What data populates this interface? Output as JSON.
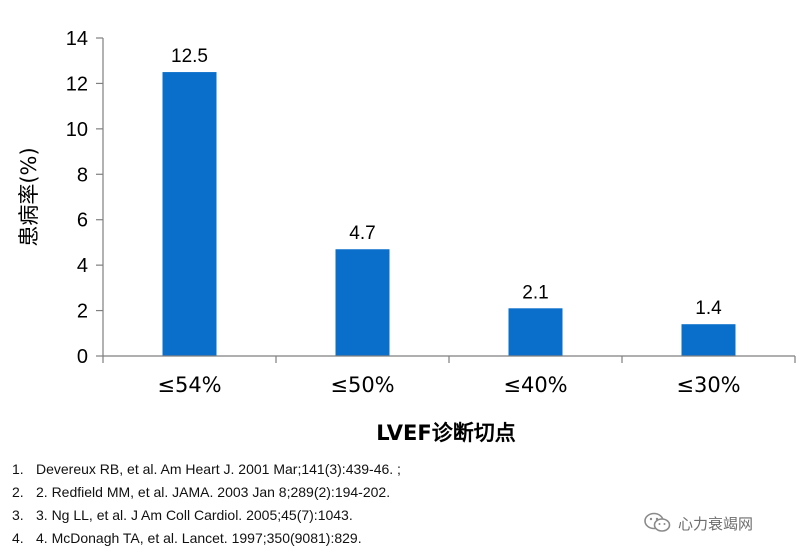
{
  "chart_data": {
    "type": "bar",
    "categories": [
      "≤54%",
      "≤50%",
      "≤40%",
      "≤30%"
    ],
    "values": [
      12.5,
      4.7,
      2.1,
      1.4
    ],
    "data_labels": [
      "12.5",
      "4.7",
      "2.1",
      "1.4"
    ],
    "title": "",
    "xlabel": "LVEF诊断切点",
    "ylabel": "患病率(%)",
    "ylim": [
      0,
      14
    ],
    "yticks": [
      0,
      2,
      4,
      6,
      8,
      10,
      12,
      14
    ],
    "grid": false,
    "legend": "none",
    "bar_color": "#0a6fcb"
  },
  "references": [
    {
      "num": "1.",
      "text": "Devereux RB, et al. Am Heart J. 2001 Mar;141(3):439-46. ;"
    },
    {
      "num": "2.",
      "text": "2. Redfield MM, et al. JAMA. 2003 Jan 8;289(2):194-202."
    },
    {
      "num": "3.",
      "text": "3. Ng LL, et al. J Am Coll Cardiol. 2005;45(7):1043."
    },
    {
      "num": "4.",
      "text": "4.  McDonagh TA, et al. Lancet. 1997;350(9081):829."
    }
  ],
  "watermark": {
    "text": "心力衰竭网",
    "icon": "wechat-logo-icon"
  }
}
